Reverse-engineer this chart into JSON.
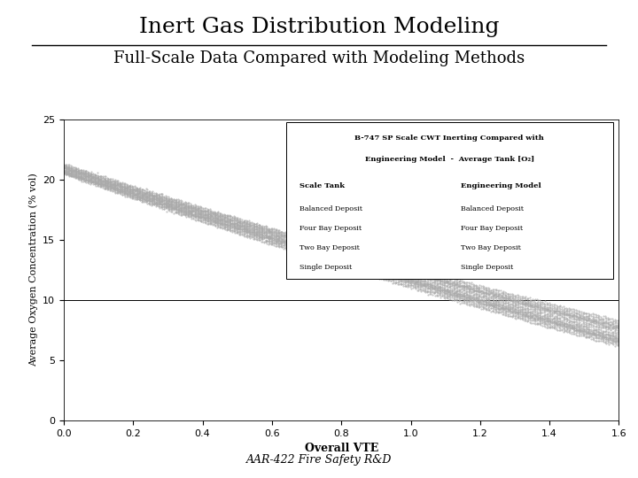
{
  "title": "Inert Gas Distribution Modeling",
  "subtitle": "Full-Scale Data Compared with Modeling Methods",
  "footer": "AAR-422 Fire Safety R&D",
  "xlabel": "Overall VTE",
  "ylabel": "Average Oxygen Concentration (% vol)",
  "xlim": [
    0,
    1.6
  ],
  "ylim": [
    0,
    25
  ],
  "xticks": [
    0,
    0.2,
    0.4,
    0.6,
    0.8,
    1.0,
    1.2,
    1.4,
    1.6
  ],
  "yticks": [
    0,
    5,
    10,
    15,
    20,
    25
  ],
  "hline_y": 10.0,
  "legend_title_line1": "B-747 SP Scale CWT Inerting Compared with",
  "legend_title_line2": "Engineering Model  -  Average Tank [O₂]",
  "legend_col1_header": "Scale Tank",
  "legend_col2_header": "Engineering Model",
  "legend_items": [
    "Balanced Deposit",
    "Four Bay Deposit",
    "Two Bay Deposit",
    "Single Deposit"
  ],
  "curve_color": "#aaaaaa",
  "bg_color": "#ffffff",
  "seed": 42
}
